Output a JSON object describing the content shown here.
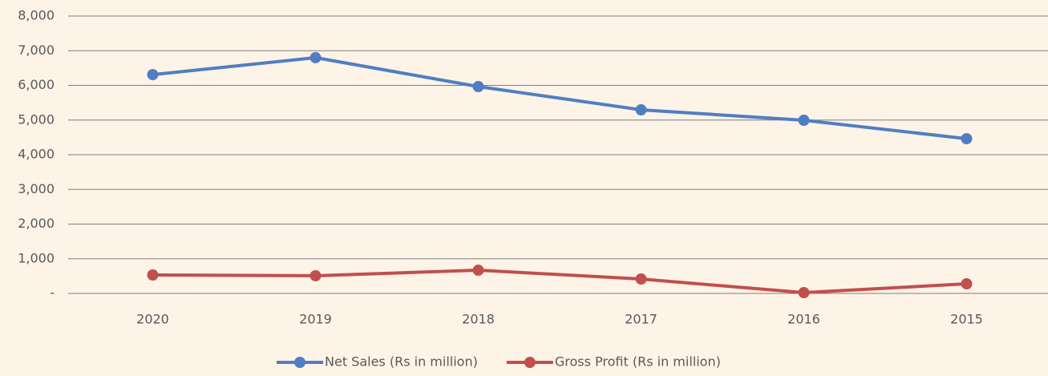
{
  "chart_data": {
    "type": "line",
    "categories": [
      "2020",
      "2019",
      "2018",
      "2017",
      "2016",
      "2015"
    ],
    "series": [
      {
        "name": "Net Sales (Rs in million)",
        "color": "#4f7ec3",
        "values": [
          6310,
          6800,
          5965,
          5295,
          4994,
          4462
        ]
      },
      {
        "name": "Gross Profit (Rs in million)",
        "color": "#c0504d",
        "values": [
          532,
          509,
          670,
          416,
          23,
          277
        ]
      }
    ],
    "ylim": [
      0,
      8000
    ],
    "yticks": [
      {
        "value": 0,
        "label": "-"
      },
      {
        "value": 1000,
        "label": "1,000"
      },
      {
        "value": 2000,
        "label": "2,000"
      },
      {
        "value": 3000,
        "label": "3,000"
      },
      {
        "value": 4000,
        "label": "4,000"
      },
      {
        "value": 5000,
        "label": "5,000"
      },
      {
        "value": 6000,
        "label": "6,000"
      },
      {
        "value": 7000,
        "label": "7,000"
      },
      {
        "value": 8000,
        "label": "8,000"
      }
    ],
    "grid": true,
    "legend": "bottom"
  }
}
